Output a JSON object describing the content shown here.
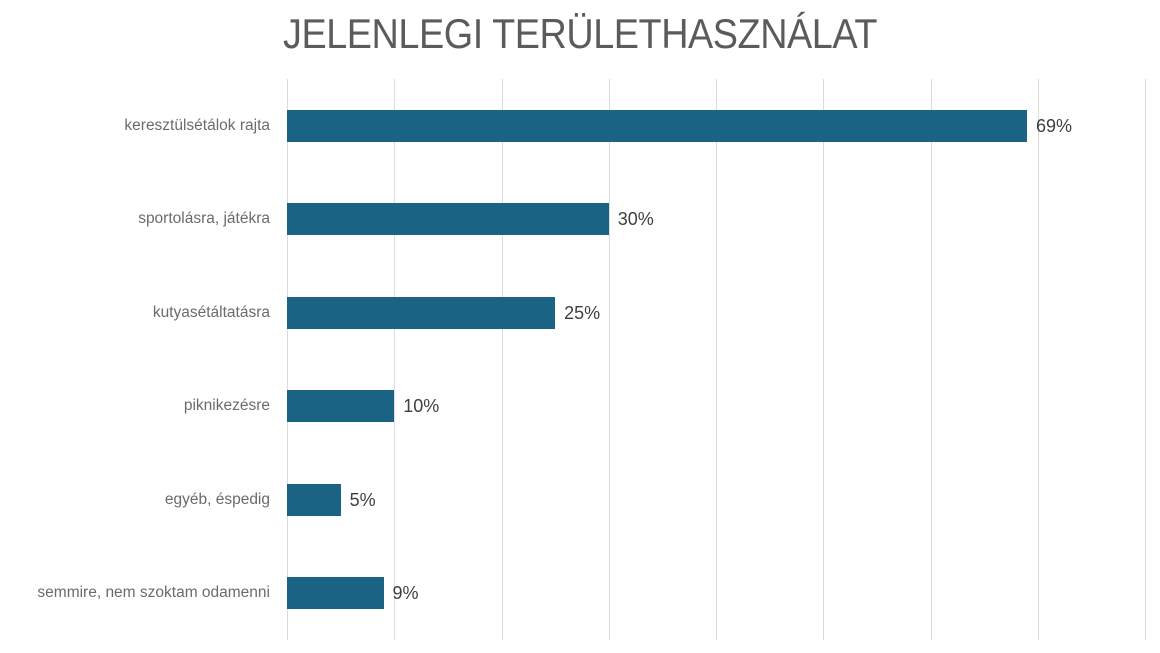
{
  "title": "JELENLEGI TERÜLETHASZNÁLAT",
  "chart_data": {
    "type": "bar",
    "orientation": "horizontal",
    "title": "JELENLEGI TERÜLETHASZNÁLAT",
    "categories": [
      "keresztülsétálok rajta",
      "sportolásra, játékra",
      "kutyasétáltatásra",
      "piknikezésre",
      "egyéb, éspedig",
      "semmire, nem szoktam odamenni"
    ],
    "values": [
      69,
      30,
      25,
      10,
      5,
      9
    ],
    "value_labels": [
      "69%",
      "30%",
      "25%",
      "10%",
      "5%",
      "9%"
    ],
    "xlabel": "",
    "ylabel": "",
    "xlim": [
      0,
      80
    ],
    "gridline_step": 10,
    "grid": true,
    "legend": false,
    "colors": {
      "bar": "#1A6384",
      "gridline": "#DCDCDC",
      "title": "#5B5B5B",
      "category_label": "#6B6B6B",
      "value_label": "#3F3F3F",
      "background": "#FFFFFF"
    }
  }
}
